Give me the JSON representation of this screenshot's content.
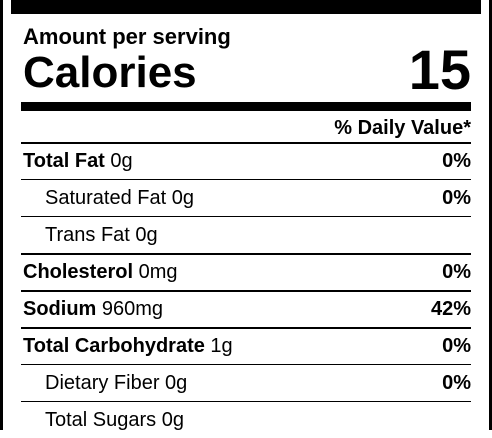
{
  "header": {
    "amount_per_serving": "Amount per serving",
    "calories_label": "Calories",
    "calories_value": "15",
    "daily_value_header": "% Daily Value*"
  },
  "nutrients": [
    {
      "name": "Total Fat",
      "amount": " 0g",
      "dv": "0%",
      "bold": true,
      "indent": false
    },
    {
      "name": "Saturated Fat",
      "amount": " 0g",
      "dv": "0%",
      "bold": false,
      "indent": true
    },
    {
      "name": "Trans Fat",
      "amount": " 0g",
      "dv": "",
      "bold": false,
      "indent": true
    },
    {
      "name": "Cholesterol",
      "amount": " 0mg",
      "dv": "0%",
      "bold": true,
      "indent": false
    },
    {
      "name": "Sodium",
      "amount": " 960mg",
      "dv": "42%",
      "bold": true,
      "indent": false
    },
    {
      "name": "Total Carbohydrate",
      "amount": " 1g",
      "dv": "0%",
      "bold": true,
      "indent": false
    },
    {
      "name": "Dietary Fiber",
      "amount": " 0g",
      "dv": "0%",
      "bold": false,
      "indent": true
    },
    {
      "name": "Total Sugars",
      "amount": " 0g",
      "dv": "",
      "bold": false,
      "indent": true
    }
  ]
}
